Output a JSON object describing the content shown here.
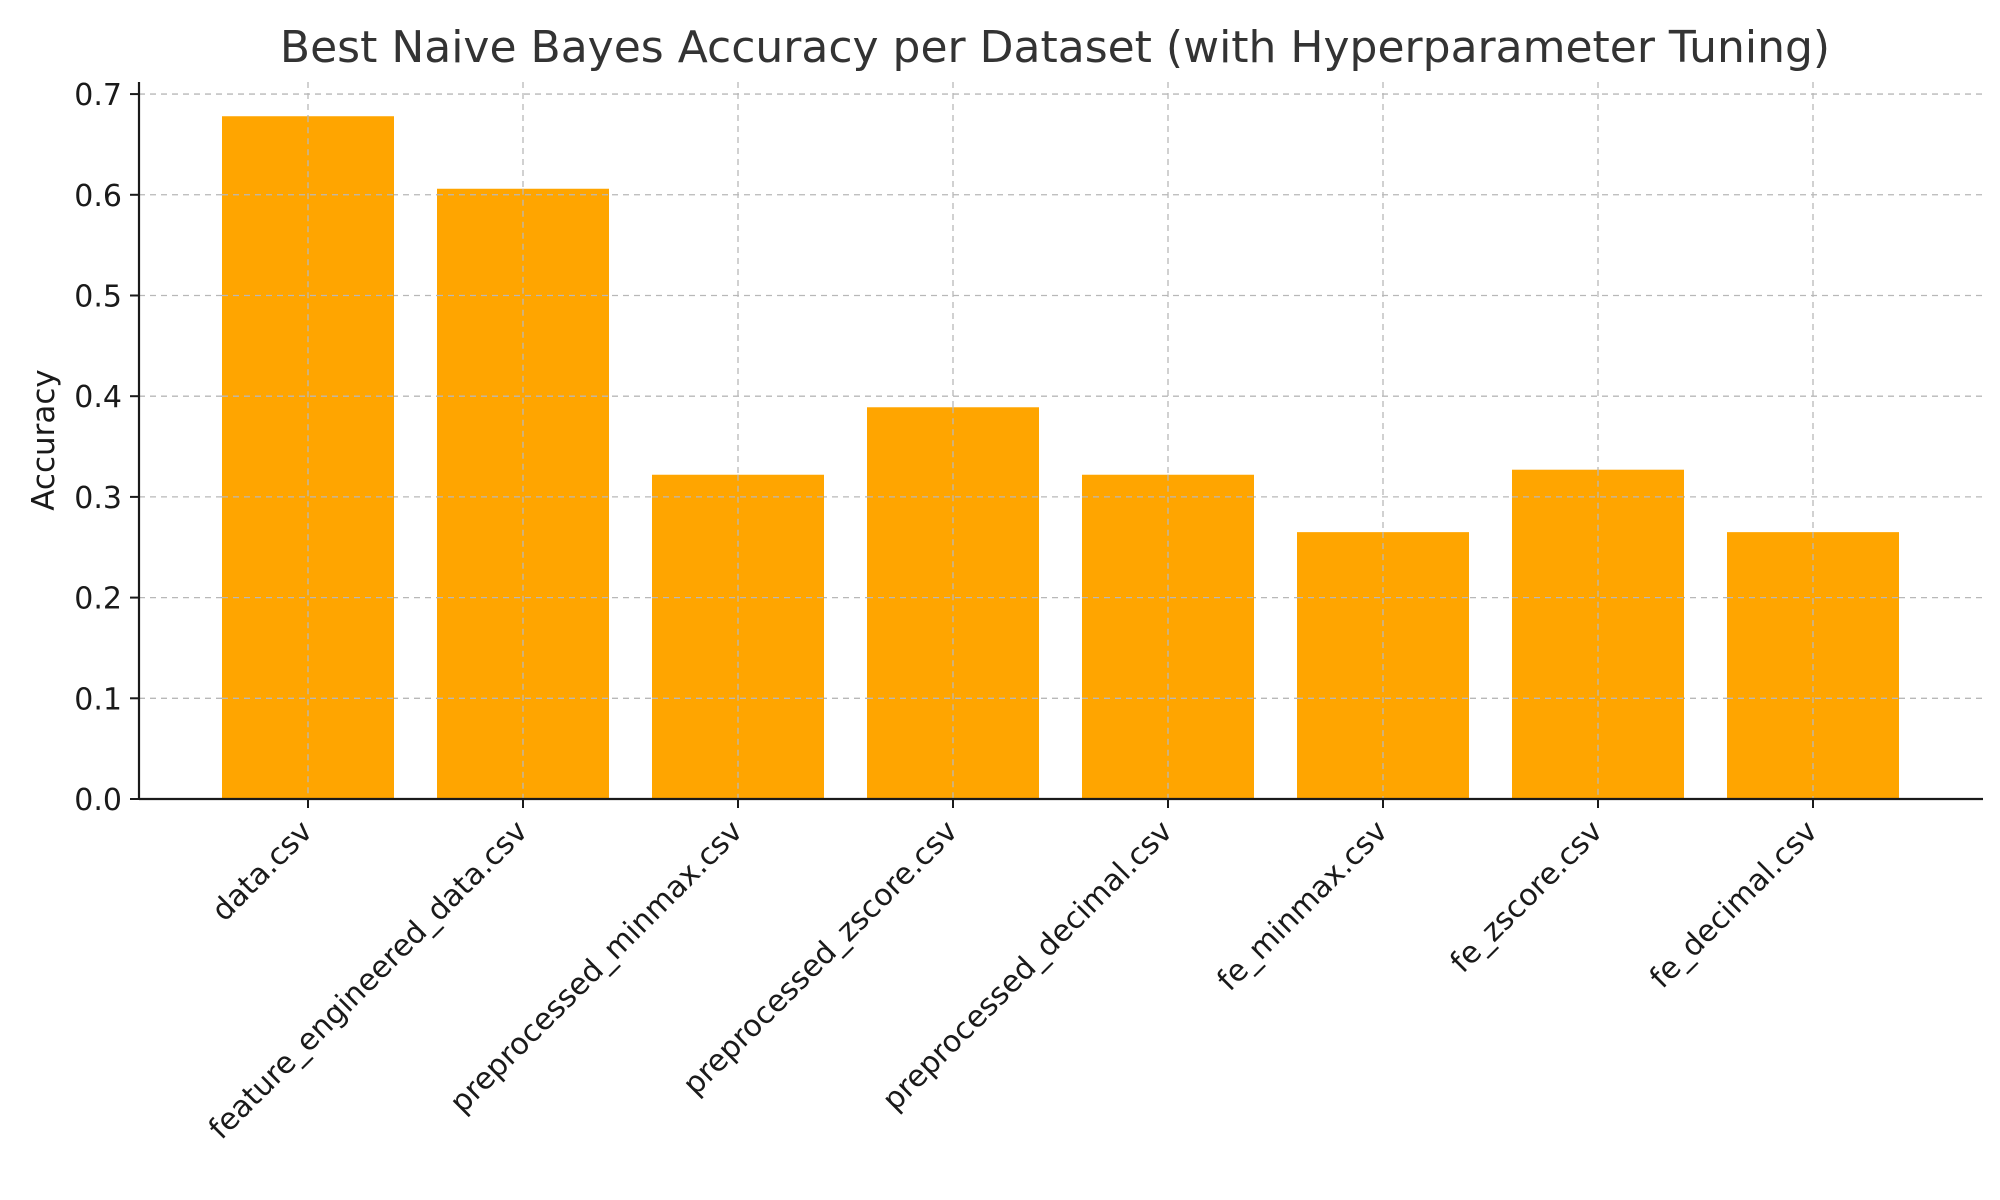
{
  "chart_data": {
    "type": "bar",
    "title": "Best Naive Bayes Accuracy per Dataset (with Hyperparameter Tuning)",
    "xlabel": "",
    "ylabel": "Accuracy",
    "categories": [
      "data.csv",
      "feature_engineered_data.csv",
      "preprocessed_minmax.csv",
      "preprocessed_zscore.csv",
      "preprocessed_decimal.csv",
      "fe_minmax.csv",
      "fe_zscore.csv",
      "fe_decimal.csv"
    ],
    "values": [
      0.678,
      0.606,
      0.322,
      0.389,
      0.322,
      0.265,
      0.327,
      0.265
    ],
    "ylim": [
      0,
      0.7
    ],
    "yticks": [
      "0.0",
      "0.1",
      "0.2",
      "0.3",
      "0.4",
      "0.5",
      "0.6",
      "0.7"
    ],
    "grid": true,
    "bar_color": "#FFA500",
    "grid_color": "#b8b8b8"
  }
}
